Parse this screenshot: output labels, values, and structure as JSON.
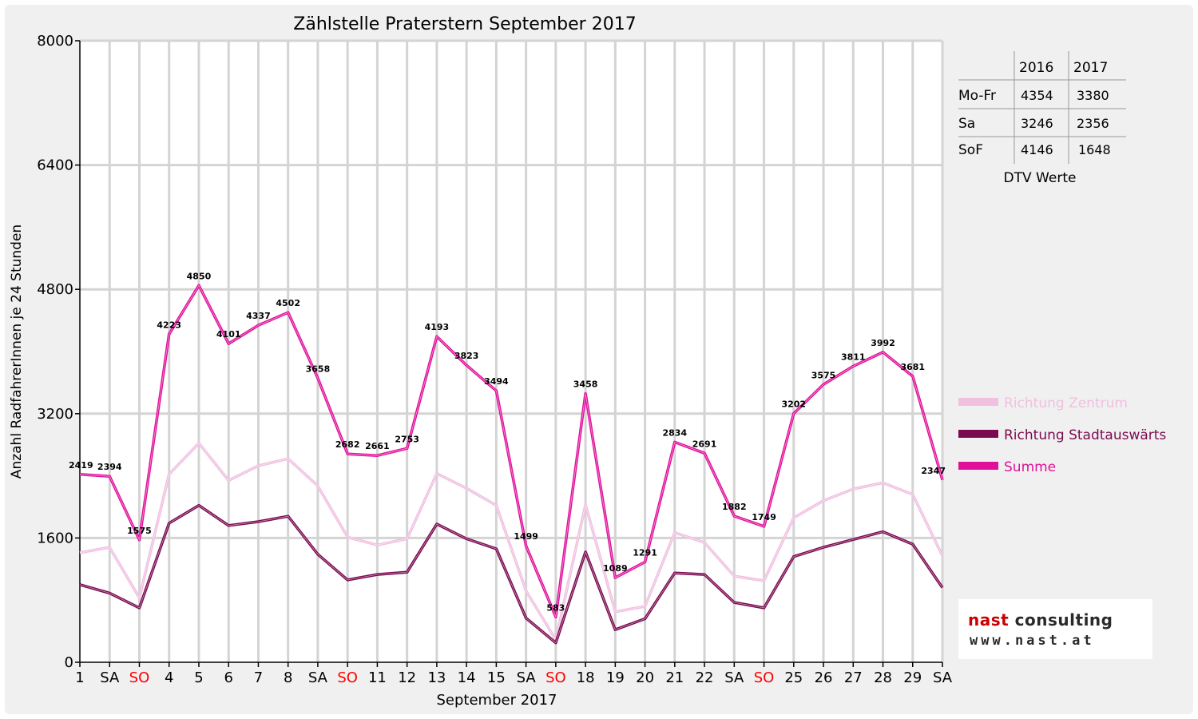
{
  "chart_data": {
    "type": "line",
    "title": "Zählstelle Praterstern September 2017",
    "xlabel": "September 2017",
    "ylabel": "Anzahl RadfahrerInnen je 24 Stunden",
    "ylim": [
      0,
      8000
    ],
    "yticks": [
      0,
      1600,
      3200,
      4800,
      6400,
      8000
    ],
    "grid": true,
    "legend_position": "right",
    "categories": [
      "1",
      "SA",
      "SO",
      "4",
      "5",
      "6",
      "7",
      "8",
      "SA",
      "SO",
      "11",
      "12",
      "13",
      "14",
      "15",
      "SA",
      "SO",
      "18",
      "19",
      "20",
      "21",
      "22",
      "SA",
      "SO",
      "25",
      "26",
      "27",
      "28",
      "29",
      "SA"
    ],
    "weekend_color": "#ff0000",
    "weekend_categories": [
      "SO"
    ],
    "series": [
      {
        "name": "Richtung Zentrum",
        "color": "#f0c0e0",
        "values": [
          1410,
          1480,
          830,
          2420,
          2820,
          2340,
          2530,
          2620,
          2270,
          1610,
          1510,
          1590,
          2430,
          2240,
          2020,
          920,
          290,
          2030,
          650,
          720,
          1670,
          1540,
          1110,
          1050,
          1860,
          2080,
          2230,
          2310,
          2160,
          1370
        ]
      },
      {
        "name": "Richtung Stadtauswärts",
        "color": "#7a0a50",
        "values": [
          1000,
          890,
          700,
          1790,
          2020,
          1760,
          1810,
          1880,
          1390,
          1060,
          1130,
          1160,
          1780,
          1590,
          1460,
          570,
          250,
          1420,
          420,
          560,
          1150,
          1130,
          770,
          700,
          1360,
          1480,
          1580,
          1680,
          1520,
          960
        ]
      },
      {
        "name": "Summe",
        "color": "#e0109a",
        "values": [
          2419,
          2394,
          1575,
          4223,
          4850,
          4101,
          4337,
          4502,
          3658,
          2682,
          2661,
          2753,
          4193,
          3823,
          3494,
          1499,
          583,
          3458,
          1089,
          1291,
          2834,
          2691,
          1882,
          1749,
          3202,
          3575,
          3811,
          3992,
          3681,
          2347
        ]
      }
    ],
    "data_labels": [
      "2419",
      "2394",
      "1575",
      "4223",
      "4850",
      "4101",
      "4337",
      "4502",
      "3658",
      "2682",
      "2661",
      "2753",
      "4193",
      "3823",
      "3494",
      "1499",
      "583",
      "3458",
      "1089",
      "1291",
      "2834",
      "2691",
      "1882",
      "1749",
      "3202",
      "3575",
      "3811",
      "3992",
      "3681",
      "2347"
    ]
  },
  "dtv_table": {
    "headers": [
      "2016",
      "2017"
    ],
    "rows": [
      {
        "label": "Mo-Fr",
        "v2016": "4354",
        "v2017": "3380"
      },
      {
        "label": "Sa",
        "v2016": "3246",
        "v2017": "2356"
      },
      {
        "label": "SoF",
        "v2016": "4146",
        "v2017": "1648"
      }
    ],
    "caption": "DTV Werte"
  },
  "logo": {
    "line1_a": "nast",
    "line1_b": "consulting",
    "line2": "www.nast.at"
  }
}
